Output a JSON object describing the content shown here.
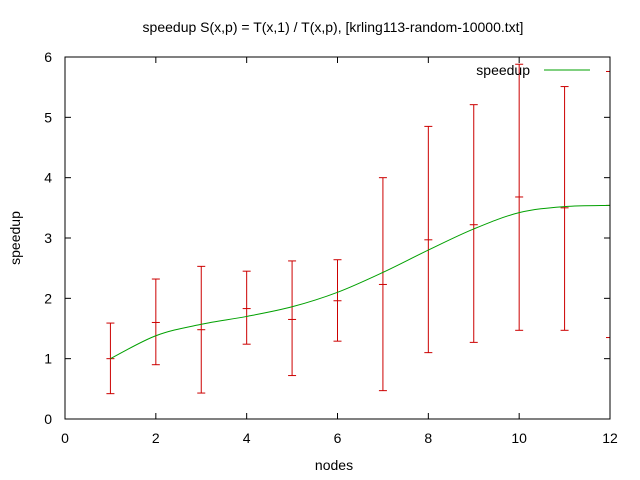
{
  "chart_data": {
    "type": "line",
    "title": "speedup S(x,p) = T(x,1) / T(x,p), [krling113-random-10000.txt]",
    "xlabel": "nodes",
    "ylabel": "speedup",
    "xlim": [
      0,
      12
    ],
    "ylim": [
      0,
      6
    ],
    "xticks": [
      "0",
      "2",
      "4",
      "6",
      "8",
      "10",
      "12"
    ],
    "yticks": [
      "0",
      "1",
      "2",
      "3",
      "4",
      "5",
      "6"
    ],
    "grid": false,
    "legend_position": "top-right",
    "series": [
      {
        "name": "speedup",
        "style": "smooth-line",
        "color": "#00a000",
        "x": [
          1,
          2,
          3,
          4,
          5,
          6,
          7,
          8,
          9,
          10,
          11,
          12
        ],
        "y": [
          1.0,
          1.38,
          1.57,
          1.7,
          1.86,
          2.1,
          2.43,
          2.8,
          3.15,
          3.42,
          3.52,
          3.54
        ]
      },
      {
        "name": "error bars",
        "style": "errorbars",
        "color": "#cc0000",
        "x": [
          1,
          2,
          3,
          4,
          5,
          6,
          7,
          8,
          9,
          10,
          11,
          12
        ],
        "y": [
          1.0,
          1.6,
          1.48,
          1.83,
          1.65,
          1.96,
          2.23,
          2.97,
          3.22,
          3.68,
          3.5,
          3.54
        ],
        "low": [
          0.42,
          0.9,
          0.43,
          1.24,
          0.72,
          1.29,
          0.47,
          1.1,
          1.27,
          1.47,
          1.47,
          1.35
        ],
        "high": [
          1.59,
          2.32,
          2.53,
          2.45,
          2.62,
          2.64,
          4.0,
          4.85,
          5.21,
          5.88,
          5.51,
          5.76
        ]
      }
    ]
  }
}
